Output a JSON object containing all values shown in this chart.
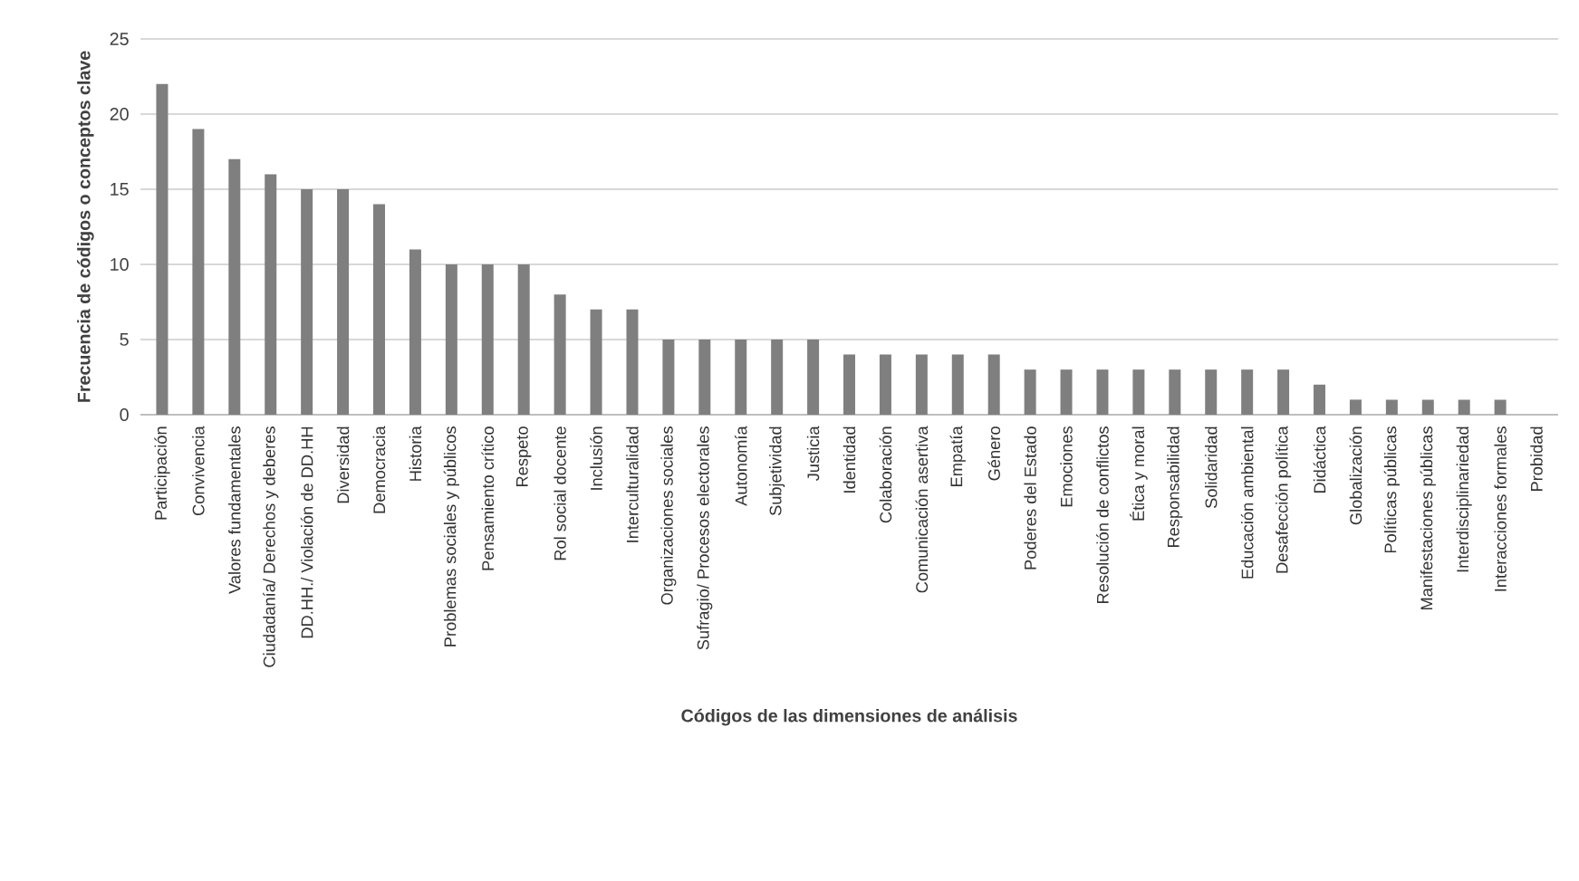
{
  "chart_data": {
    "type": "bar",
    "xlabel": "Códigos de las dimensiones de análisis",
    "ylabel": "Frecuencia de códigos o conceptos clave",
    "categories": [
      "Participación",
      "Convivencia",
      "Valores fundamentales",
      "Ciudadanía/ Derechos y deberes",
      "DD.HH./ Violación de DD.HH",
      "Diversidad",
      "Democracia",
      "Historia",
      "Problemas sociales y públicos",
      "Pensamiento crítico",
      "Respeto",
      "Rol social docente",
      "Inclusión",
      "Interculturalidad",
      "Organizaciones sociales",
      "Sufragio/ Procesos electorales",
      "Autonomía",
      "Subjetividad",
      "Justicia",
      "Identidad",
      "Colaboración",
      "Comunicación asertiva",
      "Empatía",
      "Género",
      "Poderes del Estado",
      "Emociones",
      "Resolución de conflictos",
      "Ética y moral",
      "Responsabilidad",
      "Solidaridad",
      "Educación ambiental",
      "Desafección política",
      "Didáctica",
      "Globalización",
      "Políticas públicas",
      "Manifestaciones públicas",
      "Interdisciplinariedad",
      "Interacciones formales",
      "Probidad"
    ],
    "values": [
      22,
      19,
      17,
      16,
      15,
      15,
      14,
      11,
      10,
      10,
      10,
      8,
      7,
      7,
      5,
      5,
      5,
      5,
      5,
      4,
      4,
      4,
      4,
      4,
      3,
      3,
      3,
      3,
      3,
      3,
      3,
      3,
      2,
      1,
      1,
      1,
      1,
      1,
      0
    ],
    "color": "#7f7f7f",
    "ylim": [
      0,
      25
    ],
    "yticks": [
      0,
      5,
      10,
      15,
      20,
      25
    ],
    "grid": "y"
  }
}
